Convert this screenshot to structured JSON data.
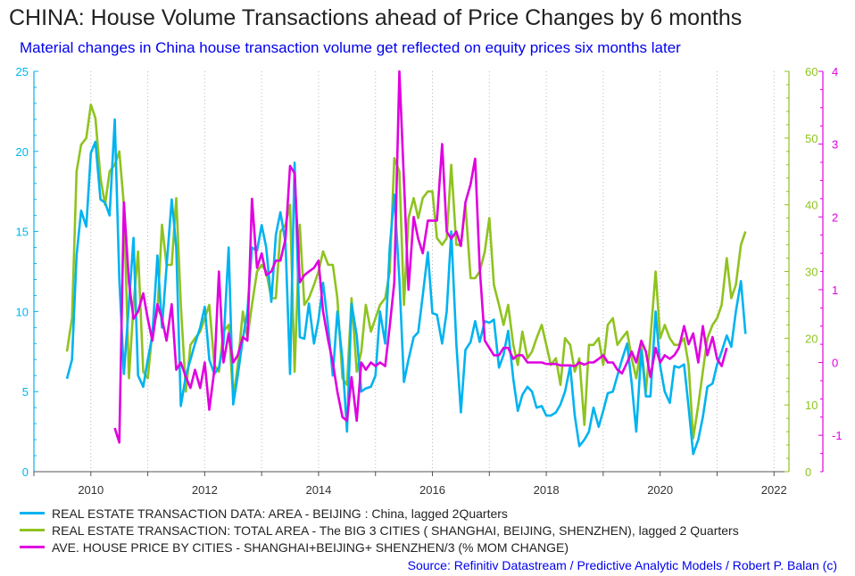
{
  "title": "CHINA: House Volume Transactions ahead of Price Changes by 6 months",
  "subtitle": "Material changes in China house transaction volume get reflected on equity prices six months later",
  "source": "Source: Refinitiv Datastream / Predictive Analytic Models / Robert P. Balan (c)",
  "colors": {
    "cyan": "#00b3f0",
    "green": "#8fc31f",
    "magenta": "#e000e0"
  },
  "chart_data": {
    "type": "line",
    "grid": "vertical dotted",
    "legend_position": "bottom-left",
    "x_ticks": [
      2010,
      2012,
      2014,
      2016,
      2018,
      2020,
      2022
    ],
    "xlim": [
      2009.0,
      2022.2
    ],
    "y_left": {
      "ticks": [
        0,
        5,
        10,
        15,
        20,
        25
      ],
      "ylim": [
        0,
        25
      ]
    },
    "y_right1": {
      "ticks": [
        0,
        10,
        20,
        30,
        40,
        50,
        60
      ],
      "ylim": [
        0,
        60
      ]
    },
    "y_right2": {
      "ticks": [
        -1,
        0,
        1,
        2,
        3,
        4
      ],
      "ylim": [
        -1.5,
        4
      ]
    },
    "series": [
      {
        "name": "REAL ESTATE TRANSACTION DATA: AREA - BEIJING : China, lagged 2Quarters",
        "axis": "left",
        "x": [
          2009.58,
          2009.67,
          2009.75,
          2009.83,
          2009.92,
          2010.0,
          2010.08,
          2010.17,
          2010.25,
          2010.33,
          2010.42,
          2010.5,
          2010.58,
          2010.67,
          2010.75,
          2010.83,
          2010.92,
          2011.0,
          2011.08,
          2011.17,
          2011.25,
          2011.33,
          2011.42,
          2011.5,
          2011.58,
          2011.67,
          2011.75,
          2011.83,
          2011.92,
          2012.0,
          2012.08,
          2012.17,
          2012.25,
          2012.33,
          2012.42,
          2012.5,
          2012.58,
          2012.67,
          2012.75,
          2012.83,
          2012.92,
          2013.0,
          2013.08,
          2013.17,
          2013.25,
          2013.33,
          2013.42,
          2013.5,
          2013.58,
          2013.67,
          2013.75,
          2013.83,
          2013.92,
          2014.0,
          2014.08,
          2014.17,
          2014.25,
          2014.33,
          2014.42,
          2014.5,
          2014.58,
          2014.67,
          2014.75,
          2014.83,
          2014.92,
          2015.0,
          2015.08,
          2015.17,
          2015.25,
          2015.33,
          2015.42,
          2015.5,
          2015.58,
          2015.67,
          2015.75,
          2015.83,
          2015.92,
          2016.0,
          2016.08,
          2016.17,
          2016.25,
          2016.33,
          2016.42,
          2016.5,
          2016.58,
          2016.67,
          2016.75,
          2016.83,
          2016.92,
          2017.0,
          2017.08,
          2017.17,
          2017.25,
          2017.33,
          2017.42,
          2017.5,
          2017.58,
          2017.67,
          2017.75,
          2017.83,
          2017.92,
          2018.0,
          2018.08,
          2018.17,
          2018.25,
          2018.33,
          2018.42,
          2018.5,
          2018.58,
          2018.67,
          2018.75,
          2018.83,
          2018.92,
          2019.0,
          2019.08,
          2019.17,
          2019.25,
          2019.33,
          2019.42,
          2019.5,
          2019.58,
          2019.67,
          2019.75,
          2019.83,
          2019.92,
          2020.0,
          2020.08,
          2020.17,
          2020.25,
          2020.33,
          2020.42,
          2020.5,
          2020.58,
          2020.67,
          2020.75,
          2020.83,
          2020.92,
          2021.0,
          2021.08,
          2021.17,
          2021.25,
          2021.33,
          2021.42,
          2021.5
        ],
        "y": [
          5.8,
          7.0,
          13.5,
          16.3,
          15.3,
          19.9,
          20.6,
          17.0,
          16.8,
          16.0,
          22.0,
          12.0,
          6.1,
          10.5,
          14.6,
          6.0,
          5.3,
          7.0,
          8.5,
          13.5,
          9.0,
          12.8,
          17.0,
          14.0,
          4.1,
          6.0,
          7.0,
          8.0,
          9.0,
          10.3,
          7.0,
          6.1,
          6.5,
          8.0,
          14.0,
          4.2,
          6.0,
          8.3,
          10.0,
          14.0,
          13.8,
          15.4,
          14.0,
          10.6,
          14.8,
          16.2,
          14.3,
          6.1,
          19.3,
          8.4,
          8.3,
          10.5,
          8.0,
          9.5,
          11.8,
          9.0,
          6.0,
          10.0,
          7.0,
          2.5,
          10.5,
          8.5,
          5.0,
          5.2,
          5.3,
          6.0,
          10.0,
          8.0,
          14.0,
          17.3,
          12.0,
          5.6,
          7.0,
          8.4,
          8.7,
          11.0,
          13.7,
          9.9,
          9.8,
          8.0,
          10.0,
          15.0,
          8.0,
          3.7,
          7.6,
          8.1,
          9.4,
          8.1,
          9.4,
          9.3,
          9.5,
          6.5,
          7.3,
          8.8,
          5.8,
          3.8,
          4.8,
          5.3,
          5.0,
          4.0,
          4.1,
          3.5,
          3.5,
          3.7,
          4.2,
          5.0,
          6.6,
          3.5,
          1.6,
          2.0,
          2.5,
          4.0,
          2.8,
          3.8,
          4.9,
          5.0,
          6.0,
          7.0,
          8.0,
          5.5,
          2.5,
          7.6,
          4.7,
          4.7,
          10.0,
          6.6,
          5.0,
          4.3,
          6.6,
          6.5,
          6.7,
          4.0,
          1.1,
          2.0,
          3.4,
          5.3,
          5.5,
          6.7,
          7.5,
          8.5,
          7.8,
          10.0,
          11.9,
          8.6
        ]
      },
      {
        "name": "REAL ESTATE TRANSACTION: TOTAL AREA - The BIG 3 CITIES ( SHANGHAI, BEIJING, SHENZHEN), lagged 2 Quarters",
        "axis": "right1",
        "x": [
          2009.58,
          2009.67,
          2009.75,
          2009.83,
          2009.92,
          2010.0,
          2010.08,
          2010.17,
          2010.25,
          2010.33,
          2010.42,
          2010.5,
          2010.58,
          2010.67,
          2010.75,
          2010.83,
          2010.92,
          2011.0,
          2011.08,
          2011.17,
          2011.25,
          2011.33,
          2011.42,
          2011.5,
          2011.58,
          2011.67,
          2011.75,
          2011.83,
          2011.92,
          2012.0,
          2012.08,
          2012.17,
          2012.25,
          2012.33,
          2012.42,
          2012.5,
          2012.58,
          2012.67,
          2012.75,
          2012.83,
          2012.92,
          2013.0,
          2013.08,
          2013.17,
          2013.25,
          2013.33,
          2013.42,
          2013.5,
          2013.58,
          2013.67,
          2013.75,
          2013.83,
          2013.92,
          2014.0,
          2014.08,
          2014.17,
          2014.25,
          2014.33,
          2014.42,
          2014.5,
          2014.58,
          2014.67,
          2014.75,
          2014.83,
          2014.92,
          2015.0,
          2015.08,
          2015.17,
          2015.25,
          2015.33,
          2015.42,
          2015.5,
          2015.58,
          2015.67,
          2015.75,
          2015.83,
          2015.92,
          2016.0,
          2016.08,
          2016.17,
          2016.25,
          2016.33,
          2016.42,
          2016.5,
          2016.58,
          2016.67,
          2016.75,
          2016.83,
          2016.92,
          2017.0,
          2017.08,
          2017.17,
          2017.25,
          2017.33,
          2017.42,
          2017.5,
          2017.58,
          2017.67,
          2017.75,
          2017.83,
          2017.92,
          2018.0,
          2018.08,
          2018.17,
          2018.25,
          2018.33,
          2018.42,
          2018.5,
          2018.58,
          2018.67,
          2018.75,
          2018.83,
          2018.92,
          2019.0,
          2019.08,
          2019.17,
          2019.25,
          2019.33,
          2019.42,
          2019.5,
          2019.58,
          2019.67,
          2019.75,
          2019.83,
          2019.92,
          2020.0,
          2020.08,
          2020.17,
          2020.25,
          2020.33,
          2020.42,
          2020.5,
          2020.58,
          2020.67,
          2020.75,
          2020.83,
          2020.92,
          2021.0,
          2021.08,
          2021.17,
          2021.25,
          2021.33,
          2021.42,
          2021.5
        ],
        "y": [
          18,
          23,
          45,
          49,
          50,
          55,
          53,
          44,
          40,
          45,
          46,
          48,
          40,
          14,
          25,
          33,
          15,
          14,
          21,
          24,
          37,
          31,
          31,
          41,
          25,
          12,
          19,
          20,
          21,
          23,
          25,
          16,
          15,
          21,
          22,
          11,
          16,
          24,
          20,
          25,
          30,
          31,
          30,
          26,
          26,
          36,
          37,
          40,
          15,
          37,
          25,
          26,
          28,
          30,
          33,
          31,
          31,
          26,
          14,
          13,
          26,
          15,
          18,
          25,
          21,
          23,
          25,
          26,
          30,
          47,
          45,
          25,
          38,
          41,
          38,
          41,
          42,
          42,
          35,
          34,
          35,
          46,
          34,
          34,
          40,
          29,
          29,
          30,
          33,
          38,
          28,
          25,
          22,
          25,
          19,
          16,
          21,
          17,
          18,
          20,
          22,
          19,
          16,
          17,
          13,
          20,
          19,
          15,
          17,
          7,
          19,
          19,
          20,
          16,
          22,
          23,
          19,
          20,
          21,
          17,
          14,
          19,
          12,
          20,
          30,
          20,
          22,
          20,
          19,
          19,
          20,
          16,
          5,
          10,
          15,
          20,
          22,
          23,
          25,
          32,
          26,
          28,
          34,
          36
        ]
      },
      {
        "name": "AVE. HOUSE PRICE BY CITIES - SHANGHAI+BEIJING+ SHENZHEN/3 (% MOM CHANGE)",
        "axis": "right2",
        "x": [
          2010.42,
          2010.5,
          2010.58,
          2010.67,
          2010.75,
          2010.83,
          2010.92,
          2011.0,
          2011.08,
          2011.17,
          2011.25,
          2011.33,
          2011.42,
          2011.5,
          2011.58,
          2011.67,
          2011.75,
          2011.83,
          2011.92,
          2012.0,
          2012.08,
          2012.17,
          2012.25,
          2012.33,
          2012.42,
          2012.5,
          2012.58,
          2012.67,
          2012.75,
          2012.83,
          2012.92,
          2013.0,
          2013.08,
          2013.17,
          2013.25,
          2013.33,
          2013.42,
          2013.5,
          2013.58,
          2013.67,
          2013.75,
          2013.83,
          2013.92,
          2014.0,
          2014.08,
          2014.17,
          2014.25,
          2014.33,
          2014.42,
          2014.5,
          2014.58,
          2014.67,
          2014.75,
          2014.83,
          2014.92,
          2015.0,
          2015.08,
          2015.17,
          2015.25,
          2015.33,
          2015.42,
          2015.5,
          2015.58,
          2015.67,
          2015.75,
          2015.83,
          2015.92,
          2016.0,
          2016.08,
          2016.17,
          2016.25,
          2016.33,
          2016.42,
          2016.5,
          2016.58,
          2016.67,
          2016.75,
          2016.83,
          2016.92,
          2017.0,
          2017.08,
          2017.17,
          2017.25,
          2017.33,
          2017.42,
          2017.5,
          2017.58,
          2017.67,
          2017.75,
          2017.83,
          2017.92,
          2018.0,
          2018.08,
          2018.17,
          2018.25,
          2018.33,
          2018.42,
          2018.5,
          2018.58,
          2018.67,
          2018.75,
          2018.83,
          2018.92,
          2019.0,
          2019.08,
          2019.17,
          2019.25,
          2019.33,
          2019.42,
          2019.5,
          2019.58,
          2019.67,
          2019.75,
          2019.83,
          2019.92,
          2020.0,
          2020.08,
          2020.17,
          2020.25,
          2020.33,
          2020.42,
          2020.5,
          2020.58,
          2020.67,
          2020.75,
          2020.83,
          2020.92,
          2021.0,
          2021.08,
          2021.17
        ],
        "y": [
          -0.9,
          -1.1,
          2.2,
          1.1,
          0.6,
          0.7,
          0.95,
          0.6,
          0.3,
          0.8,
          0.6,
          0.3,
          0.8,
          -0.1,
          0.0,
          -0.2,
          -0.35,
          -0.1,
          -0.35,
          0.0,
          -0.65,
          -0.1,
          1.25,
          0.0,
          0.4,
          0.0,
          0.1,
          0.35,
          0.3,
          2.25,
          1.3,
          1.5,
          1.2,
          1.25,
          1.4,
          1.4,
          1.7,
          2.7,
          2.6,
          1.1,
          1.2,
          1.25,
          1.3,
          1.4,
          0.7,
          0.3,
          0.0,
          -0.4,
          -0.75,
          -0.8,
          -0.2,
          -0.8,
          0.0,
          -0.1,
          0.0,
          -0.05,
          0.0,
          -0.05,
          0.5,
          1.1,
          4.0,
          2.5,
          1.0,
          2.0,
          1.7,
          1.5,
          1.95,
          1.95,
          1.95,
          3.0,
          1.8,
          1.7,
          1.8,
          1.6,
          2.2,
          2.45,
          2.8,
          1.3,
          0.3,
          0.2,
          0.1,
          0.1,
          0.2,
          0.2,
          0.05,
          0.1,
          0.1,
          0.0,
          0.0,
          0.0,
          0.0,
          -0.02,
          -0.02,
          -0.02,
          -0.04,
          -0.04,
          -0.04,
          -0.05,
          0.0,
          -0.03,
          0.0,
          0.0,
          0.05,
          0.1,
          0.0,
          0.0,
          -0.1,
          -0.15,
          0.0,
          0.15,
          0.0,
          0.3,
          0.15,
          -0.2,
          0.2,
          0.0,
          0.1,
          0.05,
          0.1,
          0.2,
          0.5,
          0.25,
          0.4,
          0.0,
          0.5,
          0.1,
          0.35,
          0.05,
          -0.05,
          0.2
        ]
      }
    ]
  }
}
